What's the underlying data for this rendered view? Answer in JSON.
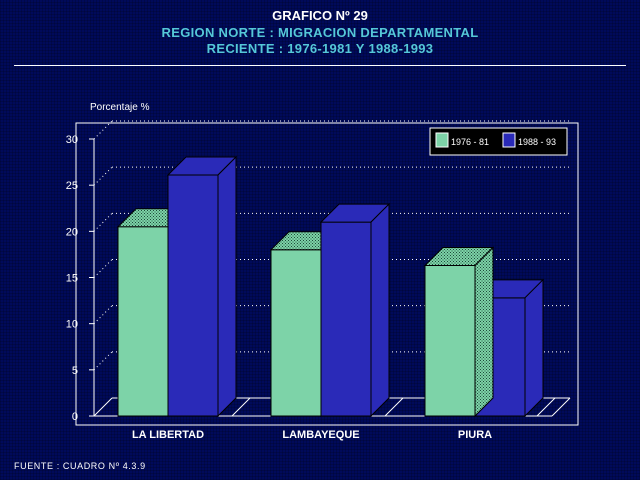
{
  "header": {
    "title": "GRAFICO Nº 29",
    "subtitle1": "REGION NORTE : MIGRACION DEPARTAMENTAL",
    "subtitle2": "RECIENTE : 1976-1981 Y 1988-1993"
  },
  "footer": {
    "source": "FUENTE : CUADRO Nº 4.3.9"
  },
  "colors": {
    "series1": "#7dd3a8",
    "series2": "#2a2ab8",
    "grid": "#ffffff",
    "background": "#000a5a"
  },
  "chart_data": {
    "type": "bar",
    "title": "GRAFICO Nº 29",
    "ylabel": "Porcentaje %",
    "xlabel": "",
    "ylim": [
      0,
      30
    ],
    "yticks": [
      0,
      5,
      10,
      15,
      20,
      25,
      30
    ],
    "categories": [
      "LA LIBERTAD",
      "LAMBAYEQUE",
      "PIURA"
    ],
    "series": [
      {
        "name": "1976 - 81",
        "values": [
          20.5,
          18.0,
          16.3
        ]
      },
      {
        "name": "1988 - 93",
        "values": [
          26.1,
          21.0,
          12.8
        ]
      }
    ],
    "grid": true,
    "legend": "top-right"
  }
}
